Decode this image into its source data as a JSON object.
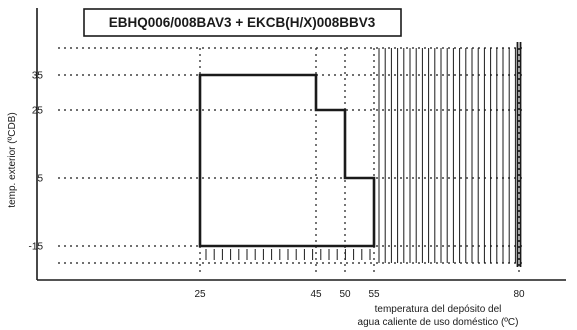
{
  "chart_data": {
    "type": "area",
    "title": "EBHQ006/008BAV3 + EKCB(H/X)008BBV3",
    "xlabel_lines": [
      "temperatura del depósito del",
      "agua caliente de uso doméstico (ºC)"
    ],
    "ylabel": "temp. exterior (ºCDB)",
    "x_ticks": [
      25,
      45,
      50,
      55,
      80
    ],
    "y_ticks": [
      35,
      25,
      5,
      -15
    ],
    "xlim": [
      18,
      85
    ],
    "ylim": [
      -21,
      44
    ],
    "operating_range": {
      "description_points": [
        [
          25,
          35
        ],
        [
          45,
          35
        ],
        [
          45,
          25
        ],
        [
          50,
          25
        ],
        [
          50,
          5
        ],
        [
          55,
          5
        ],
        [
          55,
          -15
        ],
        [
          25,
          -15
        ]
      ]
    },
    "hatched_band": {
      "x_from": 55,
      "x_to": 80,
      "y_from": -18,
      "y_to": 40
    },
    "guide_lines": {
      "horizontal": [
        40,
        35,
        25,
        5,
        -15,
        -18
      ],
      "vertical": [
        25,
        45,
        50,
        55,
        80
      ]
    },
    "colors": {
      "ink": "#1a1a1a",
      "background": "#ffffff"
    }
  }
}
